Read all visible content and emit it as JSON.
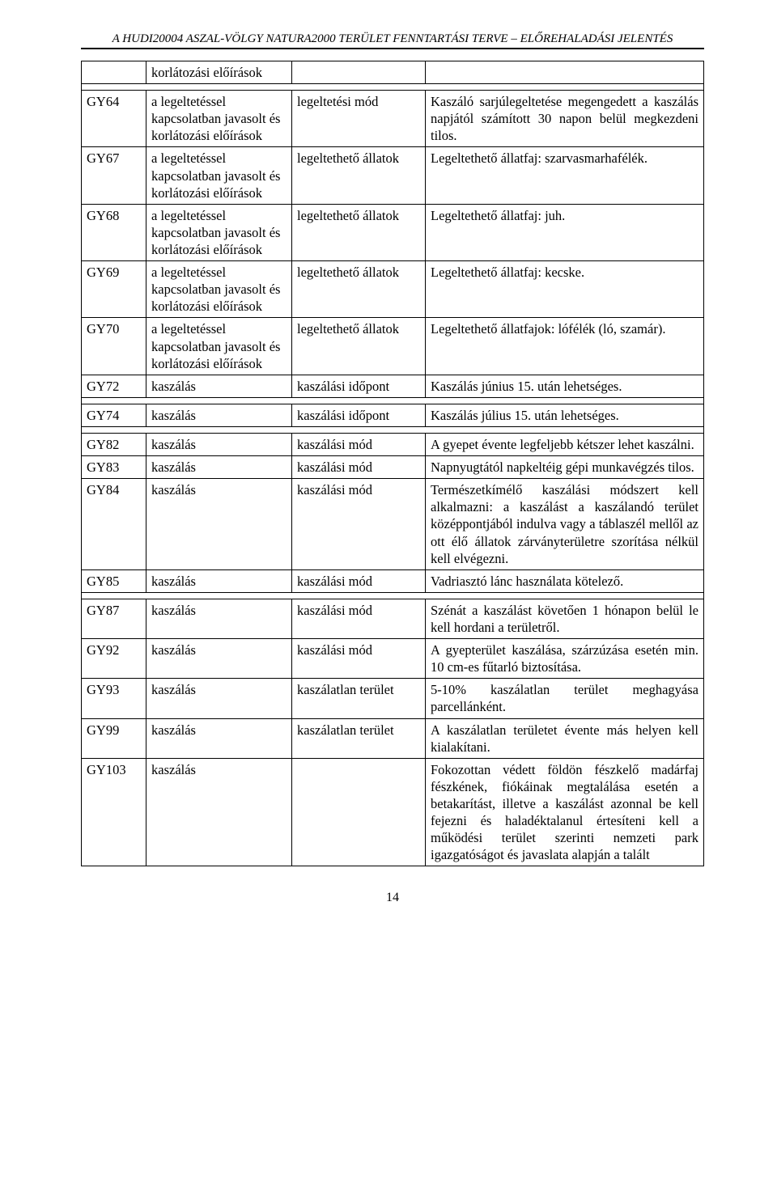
{
  "header": "A HUDI20004 ASZAL-VÖLGY NATURA2000 TERÜLET FENNTARTÁSI TERVE – ELŐREHALADÁSI JELENTÉS",
  "page_number": "14",
  "table": {
    "columns": [
      "code",
      "col2",
      "col3",
      "desc"
    ],
    "rows": [
      {
        "code": "",
        "col2": "korlátozási előírások",
        "col3_blank": true,
        "desc_blank": true
      },
      {
        "spacer": true
      },
      {
        "code": "GY64",
        "col2": "a legeltetéssel kapcsolatban javasolt és korlátozási előírások",
        "col3": "legeltetési mód",
        "desc": "Kaszáló sarjúlegeltetése megengedett a kaszálás napjától számított 30 napon belül megkezdeni tilos."
      },
      {
        "code": "GY67",
        "col2": "a legeltetéssel kapcsolatban javasolt és korlátozási előírások",
        "col3": "legeltethető állatok",
        "desc": "Legeltethető állatfaj: szarvasmarhafélék."
      },
      {
        "code": "GY68",
        "col2": "a legeltetéssel kapcsolatban javasolt és korlátozási előírások",
        "col3": "legeltethető állatok",
        "desc": "Legeltethető állatfaj: juh."
      },
      {
        "code": "GY69",
        "col2": "a legeltetéssel kapcsolatban javasolt és korlátozási előírások",
        "col3": "legeltethető állatok",
        "desc": "Legeltethető állatfaj: kecske."
      },
      {
        "code": "GY70",
        "col2": "a legeltetéssel kapcsolatban javasolt és korlátozási előírások",
        "col3": "legeltethető állatok",
        "desc": "Legeltethető állatfajok: lófélék (ló, szamár)."
      },
      {
        "code": "GY72",
        "col2": "kaszálás",
        "col3": "kaszálási időpont",
        "desc": "Kaszálás június 15. után lehetséges."
      },
      {
        "spacer": true
      },
      {
        "code": "GY74",
        "col2": "kaszálás",
        "col3": "kaszálási időpont",
        "desc": "Kaszálás július 15. után lehetséges."
      },
      {
        "spacer": true
      },
      {
        "code": "GY82",
        "col2": "kaszálás",
        "col3": "kaszálási mód",
        "desc": "A gyepet évente legfeljebb kétszer lehet kaszálni."
      },
      {
        "code": "GY83",
        "col2": "kaszálás",
        "col3": "kaszálási mód",
        "desc": "Napnyugtától napkeltéig gépi munkavégzés tilos."
      },
      {
        "code": "GY84",
        "col2": "kaszálás",
        "col3": "kaszálási mód",
        "desc": "Természetkímélő kaszálási módszert kell alkalmazni: a kaszálást a kaszálandó terület középpontjából indulva vagy a táblaszél mellől az ott élő állatok zárványterületre szorítása nélkül kell elvégezni."
      },
      {
        "code": "GY85",
        "col2": "kaszálás",
        "col3": "kaszálási mód",
        "desc": "Vadriasztó lánc használata kötelező."
      },
      {
        "spacer": true
      },
      {
        "code": "GY87",
        "col2": "kaszálás",
        "col3": "kaszálási mód",
        "desc": "Szénát a kaszálást követően 1 hónapon belül le kell hordani a területről."
      },
      {
        "code": "GY92",
        "col2": "kaszálás",
        "col3": "kaszálási mód",
        "desc": "A gyepterület kaszálása, szárzúzása esetén min. 10 cm-es fűtarló biztosítása."
      },
      {
        "code": "GY93",
        "col2": "kaszálás",
        "col3": "kaszálatlan terület",
        "desc": "5-10% kaszálatlan terület meghagyása parcellánként."
      },
      {
        "code": "GY99",
        "col2": "kaszálás",
        "col3": "kaszálatlan terület",
        "desc": "A kaszálatlan területet évente más helyen kell kialakítani."
      },
      {
        "code": "GY103",
        "col2": "kaszálás",
        "col3": "",
        "desc": "Fokozottan védett földön fészkelő madárfaj fészkének, fiókáinak megtalálása esetén a betakarítást, illetve a kaszálást azonnal be kell fejezni és haladéktalanul értesíteni kell a működési terület szerinti nemzeti park igazgatóságot és javaslata alapján a talált"
      }
    ]
  }
}
